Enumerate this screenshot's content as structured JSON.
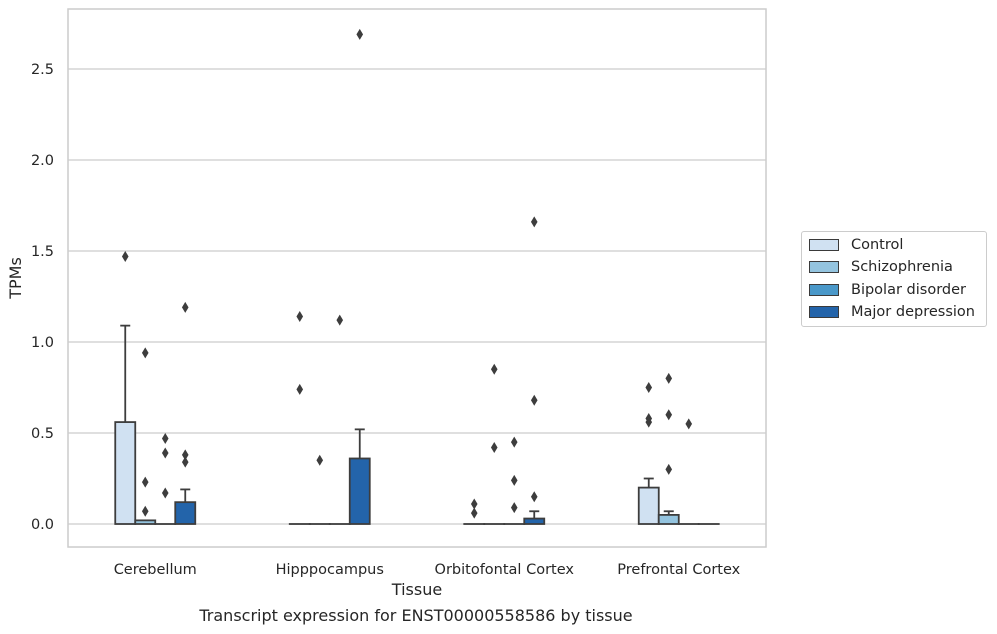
{
  "caption": "Transcript expression for ENST00000558586 by tissue",
  "colors": {
    "Control": "#d0e1f2",
    "Schizophrenia": "#94c4df",
    "Bipolar disorder": "#4a98c9",
    "Major depression": "#2364aa",
    "grid": "#cccccc",
    "edge": "#3d3d3d"
  },
  "chart_data": {
    "type": "bar",
    "xlabel": "Tissue",
    "ylabel": "TPMs",
    "ylim": [
      -0.13,
      2.85
    ],
    "yticks": [
      0.0,
      0.5,
      1.0,
      1.5,
      2.0,
      2.5
    ],
    "ytick_labels": [
      "0.0",
      "0.5",
      "1.0",
      "1.5",
      "2.0",
      "2.5"
    ],
    "grid": "horizontal",
    "legend_position": "right, outside plot",
    "categories": [
      "Cerebellum",
      "Hipppocampus",
      "Orbitofontal Cortex",
      "Prefrontal Cortex"
    ],
    "series": [
      {
        "name": "Control",
        "values": [
          0.56,
          0.0,
          0.0,
          0.2
        ],
        "whisker": [
          1.09,
          0.0,
          0.0,
          0.25
        ],
        "outliers": [
          [
            1.47
          ],
          [
            1.14,
            0.74
          ],
          [
            0.11,
            0.06
          ],
          [
            0.75,
            0.58,
            0.56
          ]
        ]
      },
      {
        "name": "Schizophrenia",
        "values": [
          0.02,
          0.0,
          0.0,
          0.05
        ],
        "whisker": [
          0.02,
          0.0,
          0.0,
          0.07
        ],
        "outliers": [
          [
            0.94,
            0.23,
            0.07
          ],
          [
            0.35
          ],
          [
            0.85,
            0.42
          ],
          [
            0.8,
            0.6,
            0.3
          ]
        ]
      },
      {
        "name": "Bipolar disorder",
        "values": [
          0.0,
          0.0,
          0.0,
          0.0
        ],
        "whisker": [
          0.0,
          0.0,
          0.0,
          0.0
        ],
        "outliers": [
          [
            0.47,
            0.39,
            0.17
          ],
          [
            1.12
          ],
          [
            0.45,
            0.24,
            0.09
          ],
          [
            0.55
          ]
        ]
      },
      {
        "name": "Major depression",
        "values": [
          0.12,
          0.36,
          0.03,
          0.0
        ],
        "whisker": [
          0.19,
          0.52,
          0.07,
          0.0
        ],
        "outliers": [
          [
            1.19,
            0.38,
            0.34
          ],
          [
            2.69
          ],
          [
            1.66,
            0.68,
            0.15
          ],
          []
        ]
      }
    ]
  }
}
